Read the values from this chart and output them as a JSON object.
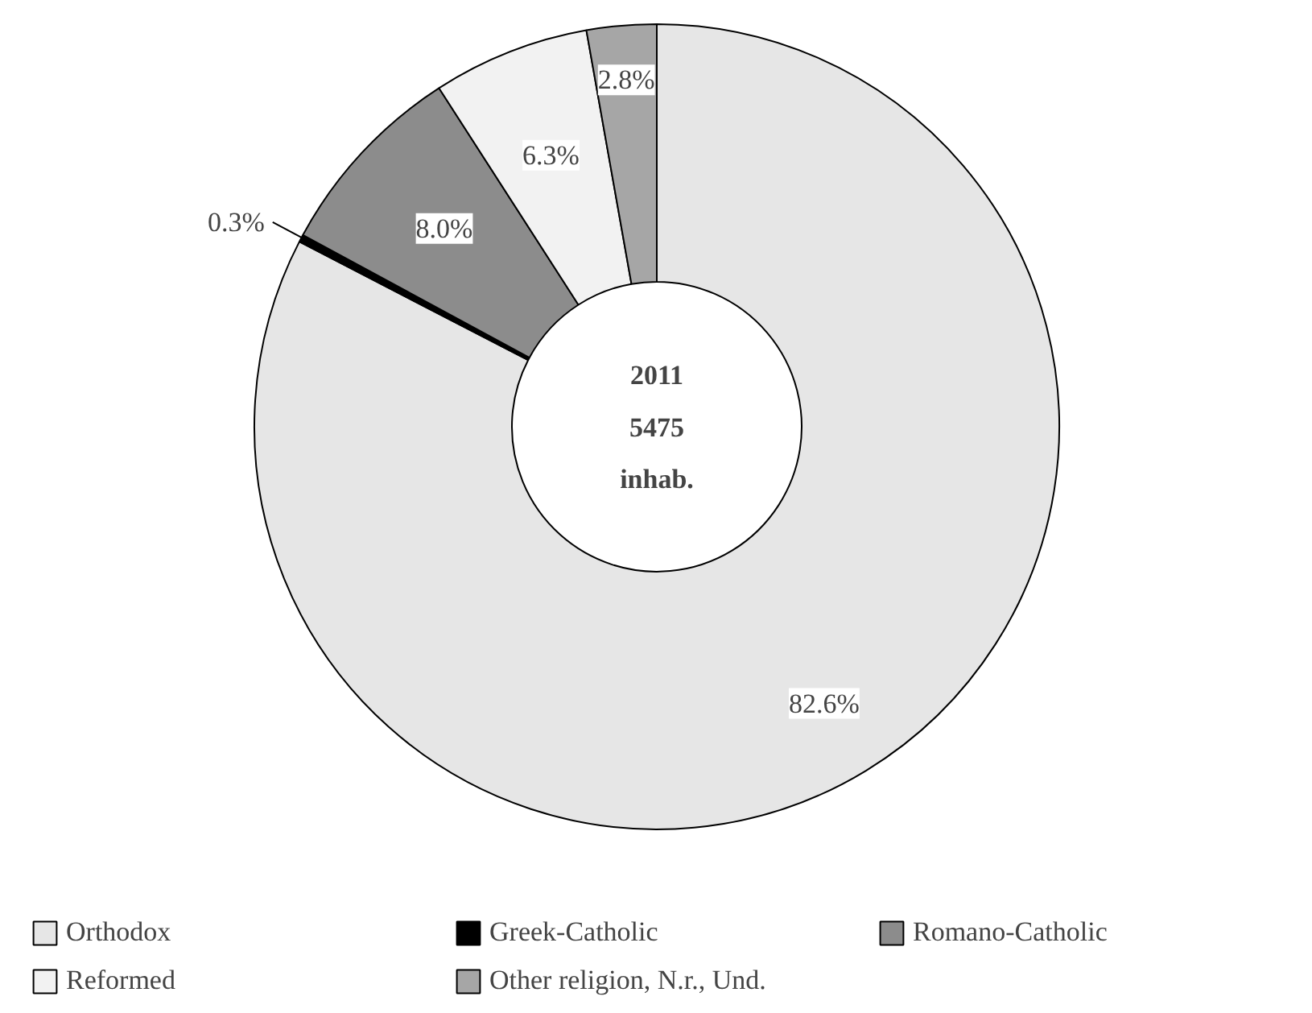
{
  "chart_data": {
    "type": "donut",
    "categories": [
      "Orthodox",
      "Greek-Catholic",
      "Romano-Catholic",
      "Reformed",
      "Other religion, N.r., Und."
    ],
    "values": [
      82.6,
      0.3,
      8.0,
      6.3,
      2.8
    ],
    "value_labels": [
      "82.6%",
      "0.3%",
      "8.0%",
      "6.3%",
      "2.8%"
    ],
    "colors": [
      "#e6e6e6",
      "#000000",
      "#8c8c8c",
      "#f2f2f2",
      "#a6a6a6"
    ],
    "annotations": [
      "2011",
      "5475",
      "inhab."
    ],
    "legend": "bottom"
  }
}
